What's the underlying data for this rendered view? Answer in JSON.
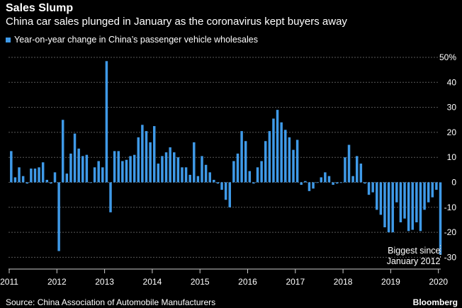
{
  "title": "Sales Slump",
  "subtitle": "China car sales plunged in January as the coronavirus kept buyers away",
  "source": "Source: China Association of Automobile Manufacturers",
  "brand": "Bloomberg",
  "colors": {
    "bar": "#3f9ae8",
    "background": "#000000",
    "grid": "#5a5a5a",
    "text": "#ffffff"
  },
  "chart_data": {
    "type": "bar",
    "series": [
      {
        "name": "Year-on-year change in China’s passenger vehicle wholesales",
        "start": "2011-01",
        "values": [
          12.5,
          2,
          6,
          2.5,
          -0.5,
          5.5,
          5.5,
          6,
          8,
          1,
          -0.5,
          4,
          -27.5,
          25,
          3.5,
          11.5,
          19.5,
          13.5,
          10.5,
          11,
          0,
          6,
          8.5,
          6,
          48.5,
          -12,
          12.5,
          12.5,
          8.5,
          9,
          10.5,
          11,
          18,
          23,
          20.5,
          16,
          22.5,
          7.5,
          10.5,
          12,
          14,
          12,
          10,
          6,
          6,
          3,
          16,
          2.5,
          10.5,
          7,
          4,
          1,
          -0.5,
          -3,
          -7,
          -10,
          8.5,
          11.5,
          20.5,
          16.5,
          4.5,
          -0.5,
          6,
          8.5,
          16.5,
          20.5,
          25.5,
          29,
          24,
          21,
          18,
          13,
          17,
          -1,
          0.5,
          -3.5,
          -2.5,
          0,
          2,
          4,
          2.5,
          -1,
          -0.5,
          0,
          10,
          15,
          2.5,
          10.5,
          7.5,
          -0.5,
          -5,
          -4,
          -11,
          -13,
          -18,
          -20,
          -20,
          -8,
          -16,
          -14.5,
          -19.5,
          -19,
          -16,
          -19.5,
          -11,
          -8,
          -6,
          -3,
          -29
        ]
      }
    ],
    "ylim": [
      -35,
      50
    ],
    "y_ticks": [
      -30,
      -20,
      -10,
      0,
      10,
      20,
      30,
      40,
      50
    ],
    "y_tick_labels": [
      "-30",
      "-20",
      "-10",
      "0",
      "10",
      "20",
      "30",
      "40",
      "50%"
    ],
    "x_ticks": [
      "2011",
      "2012",
      "2013",
      "2014",
      "2015",
      "2016",
      "2017",
      "2018",
      "2019",
      "2020"
    ],
    "annotation": {
      "text_line1": "Biggest since",
      "text_line2": "January 2012",
      "point": "2020-01"
    },
    "grid": true,
    "legend_position": "top-left"
  }
}
